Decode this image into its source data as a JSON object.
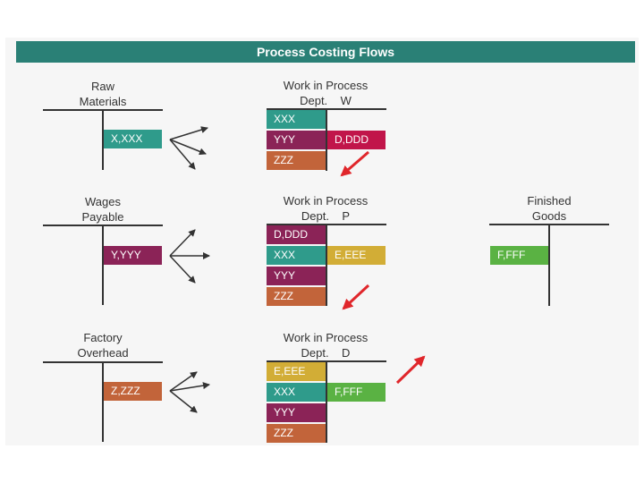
{
  "title": "Process Costing Flows",
  "colors": {
    "title_bar": "#2a8076",
    "teal": "#2f9b8b",
    "purple": "#8b2357",
    "orange": "#c2643a",
    "crimson": "#c1154a",
    "gold": "#d2ad36",
    "green": "#5ab243",
    "arrow_red": "#e0262b",
    "line": "#333333"
  },
  "accounts": {
    "raw_materials": {
      "line1": "Raw",
      "line2": "Materials",
      "debit": "X,XXX"
    },
    "wages_payable": {
      "line1": "Wages",
      "line2": "Payable",
      "debit": "Y,YYY"
    },
    "factory_overhead": {
      "line1": "Factory",
      "line2": "Overhead",
      "debit": "Z,ZZZ"
    },
    "wip_w": {
      "line1": "Work in Process",
      "line2": "Dept.    W",
      "debits": [
        "XXX",
        "YYY",
        "ZZZ"
      ],
      "credit": "D,DDD"
    },
    "wip_p": {
      "line1": "Work in Process",
      "line2": "Dept.    P",
      "debits": [
        "D,DDD",
        "XXX",
        "YYY",
        "ZZZ"
      ],
      "credit": "E,EEE"
    },
    "wip_d": {
      "line1": "Work in Process",
      "line2": "Dept.    D",
      "debits": [
        "E,EEE",
        "XXX",
        "YYY",
        "ZZZ"
      ],
      "credit": "F,FFF"
    },
    "finished_goods": {
      "line1": "Finished",
      "line2": "Goods",
      "debit": "F,FFF"
    }
  }
}
